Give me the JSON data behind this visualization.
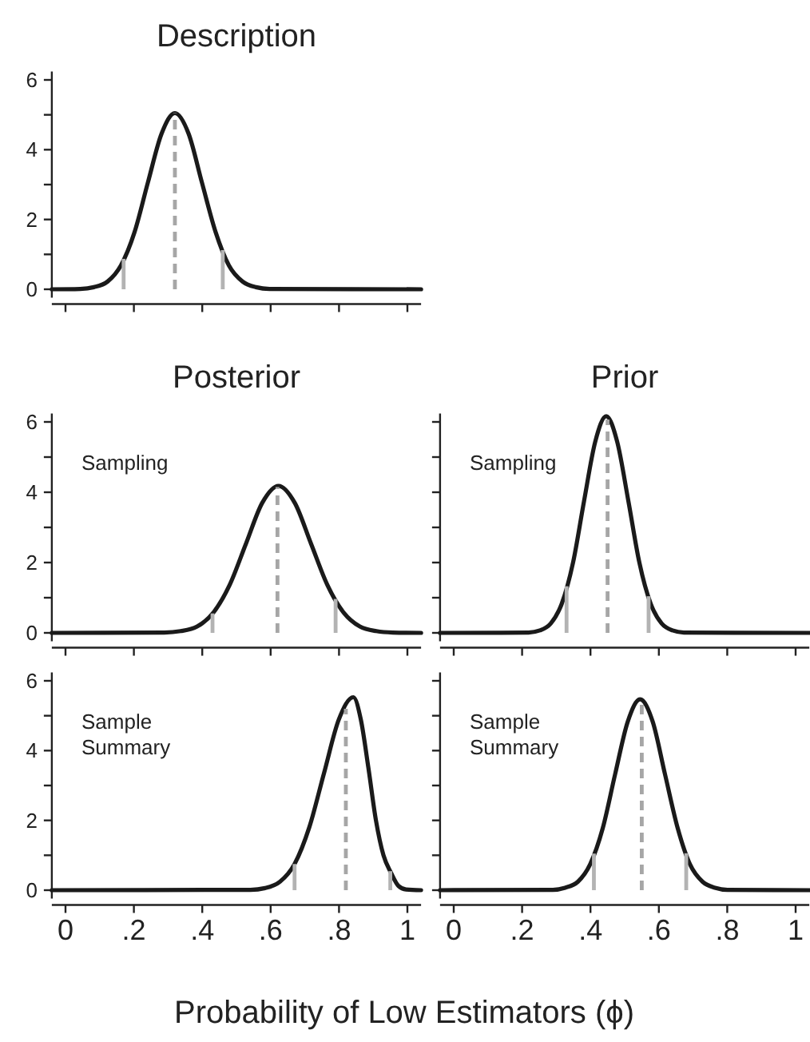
{
  "chart_data": [
    {
      "type": "line",
      "title": "Description",
      "color": "#1a1a1a",
      "xlim": [
        -0.04,
        1.04
      ],
      "ylim": [
        -0.24,
        6.24
      ],
      "xticks": [
        0,
        0.2,
        0.4,
        0.6,
        0.8,
        1
      ],
      "yticks": [
        0,
        {
          "value": 1,
          "label": null
        },
        2,
        {
          "value": 3,
          "label": null
        },
        4,
        {
          "value": 5,
          "label": null
        },
        6
      ],
      "tick_labels": "y",
      "x": [
        -0.04,
        0.043,
        0.083,
        0.123,
        0.162,
        0.202,
        0.241,
        0.281,
        0.32,
        0.36,
        0.399,
        0.439,
        0.478,
        0.518,
        0.557,
        0.597,
        1.04
      ],
      "values": [
        0,
        0.01,
        0.06,
        0.22,
        0.68,
        1.64,
        3.06,
        4.46,
        5.05,
        4.46,
        3.06,
        1.64,
        0.68,
        0.22,
        0.06,
        0.01,
        0
      ],
      "ref_lines": [
        {
          "axis": "x",
          "value": 0.17,
          "color": "#b3b3b3",
          "line_style": "solid"
        },
        {
          "axis": "x",
          "value": 0.32,
          "color": "#a6a6a6",
          "line_style": "dashed"
        },
        {
          "axis": "x",
          "value": 0.46,
          "color": "#b3b3b3",
          "line_style": "solid"
        }
      ]
    },
    {
      "type": "line",
      "title": "Posterior",
      "annotations": [
        "Sampling"
      ],
      "color": "#1a1a1a",
      "xlim": [
        -0.04,
        1.04
      ],
      "ylim": [
        -0.24,
        6.24
      ],
      "xticks": [
        0,
        0.2,
        0.4,
        0.6,
        0.8,
        1
      ],
      "yticks": [
        0,
        {
          "value": 1,
          "label": null
        },
        2,
        {
          "value": 3,
          "label": null
        },
        4,
        {
          "value": 5,
          "label": null
        },
        6
      ],
      "tick_labels": "y",
      "x": [
        -0.04,
        0.289,
        0.337,
        0.385,
        0.432,
        0.48,
        0.528,
        0.575,
        0.623,
        0.671,
        0.718,
        0.766,
        0.814,
        0.861,
        0.909,
        0.957,
        1.04
      ],
      "values": [
        0,
        0.01,
        0.05,
        0.18,
        0.57,
        1.36,
        2.54,
        3.69,
        4.18,
        3.69,
        2.54,
        1.36,
        0.57,
        0.18,
        0.05,
        0.01,
        0
      ],
      "ref_lines": [
        {
          "axis": "x",
          "value": 0.43,
          "color": "#b3b3b3",
          "line_style": "solid"
        },
        {
          "axis": "x",
          "value": 0.62,
          "color": "#a6a6a6",
          "line_style": "dashed"
        },
        {
          "axis": "x",
          "value": 0.79,
          "color": "#b3b3b3",
          "line_style": "solid"
        }
      ]
    },
    {
      "type": "line",
      "title": "Prior",
      "annotations": [
        "Sampling"
      ],
      "color": "#1a1a1a",
      "xlim": [
        -0.04,
        1.04
      ],
      "ylim": [
        -0.24,
        6.24
      ],
      "xticks": [
        0,
        0.2,
        0.4,
        0.6,
        0.8,
        1
      ],
      "yticks": [
        0,
        1,
        2,
        3,
        4,
        5,
        6
      ],
      "tick_labels": false,
      "x": [
        -0.04,
        0.219,
        0.252,
        0.284,
        0.316,
        0.349,
        0.381,
        0.414,
        0.446,
        0.478,
        0.511,
        0.543,
        0.576,
        0.608,
        0.64,
        0.673,
        1.04
      ],
      "values": [
        0,
        0.01,
        0.07,
        0.27,
        0.83,
        2.0,
        3.74,
        5.44,
        6.16,
        5.44,
        3.74,
        2.0,
        0.83,
        0.27,
        0.07,
        0.01,
        0
      ],
      "ref_lines": [
        {
          "axis": "x",
          "value": 0.33,
          "color": "#b3b3b3",
          "line_style": "solid"
        },
        {
          "axis": "x",
          "value": 0.45,
          "color": "#a6a6a6",
          "line_style": "dashed"
        },
        {
          "axis": "x",
          "value": 0.57,
          "color": "#b3b3b3",
          "line_style": "solid"
        }
      ]
    },
    {
      "type": "line",
      "annotations": [
        "Sample\nSummary"
      ],
      "color": "#1a1a1a",
      "xlim": [
        -0.04,
        1.04
      ],
      "ylim": [
        -0.24,
        6.24
      ],
      "xticks": [
        0,
        {
          "value": 0.2,
          "label": ".2"
        },
        {
          "value": 0.4,
          "label": ".4"
        },
        {
          "value": 0.6,
          "label": ".6"
        },
        {
          "value": 0.8,
          "label": ".8"
        },
        1
      ],
      "yticks": [
        0,
        {
          "value": 1,
          "label": null
        },
        2,
        {
          "value": 3,
          "label": null
        },
        4,
        {
          "value": 5,
          "label": null
        },
        6
      ],
      "x": [
        -0.04,
        0.541,
        0.584,
        0.627,
        0.67,
        0.713,
        0.756,
        0.799,
        0.842,
        0.864,
        0.886,
        0.908,
        0.93,
        0.952,
        0.974,
        0.996,
        1.04
      ],
      "values": [
        0,
        0.01,
        0.06,
        0.24,
        0.75,
        1.8,
        3.35,
        4.88,
        5.53,
        4.88,
        3.5,
        2.0,
        1.0,
        0.5,
        0.12,
        0.02,
        0
      ],
      "ref_lines": [
        {
          "axis": "x",
          "value": 0.67,
          "color": "#b3b3b3",
          "line_style": "solid"
        },
        {
          "axis": "x",
          "value": 0.82,
          "color": "#a6a6a6",
          "line_style": "dashed"
        },
        {
          "axis": "x",
          "value": 0.95,
          "color": "#b3b3b3",
          "line_style": "solid"
        }
      ]
    },
    {
      "type": "line",
      "xlabel": "Probability of Low Estimators (ϕ)",
      "annotations": [
        "Sample\nSummary"
      ],
      "color": "#1a1a1a",
      "xlim": [
        -0.04,
        1.04
      ],
      "ylim": [
        -0.24,
        6.24
      ],
      "xticks": [
        0,
        {
          "value": 0.2,
          "label": ".2"
        },
        {
          "value": 0.4,
          "label": ".4"
        },
        {
          "value": 0.6,
          "label": ".6"
        },
        {
          "value": 0.8,
          "label": ".8"
        },
        1
      ],
      "yticks": [
        0,
        1,
        2,
        3,
        4,
        5,
        6
      ],
      "tick_labels": "x",
      "x": [
        -0.04,
        0.29,
        0.326,
        0.363,
        0.399,
        0.436,
        0.472,
        0.509,
        0.545,
        0.582,
        0.618,
        0.655,
        0.691,
        0.728,
        0.764,
        0.801,
        1.04
      ],
      "values": [
        0,
        0.01,
        0.07,
        0.24,
        0.74,
        1.78,
        3.32,
        4.83,
        5.47,
        4.83,
        3.32,
        1.78,
        0.74,
        0.24,
        0.07,
        0.01,
        0
      ],
      "ref_lines": [
        {
          "axis": "x",
          "value": 0.41,
          "color": "#b3b3b3",
          "line_style": "solid"
        },
        {
          "axis": "x",
          "value": 0.55,
          "color": "#a6a6a6",
          "line_style": "dashed"
        },
        {
          "axis": "x",
          "value": 0.68,
          "color": "#b3b3b3",
          "line_style": "solid"
        }
      ]
    }
  ]
}
